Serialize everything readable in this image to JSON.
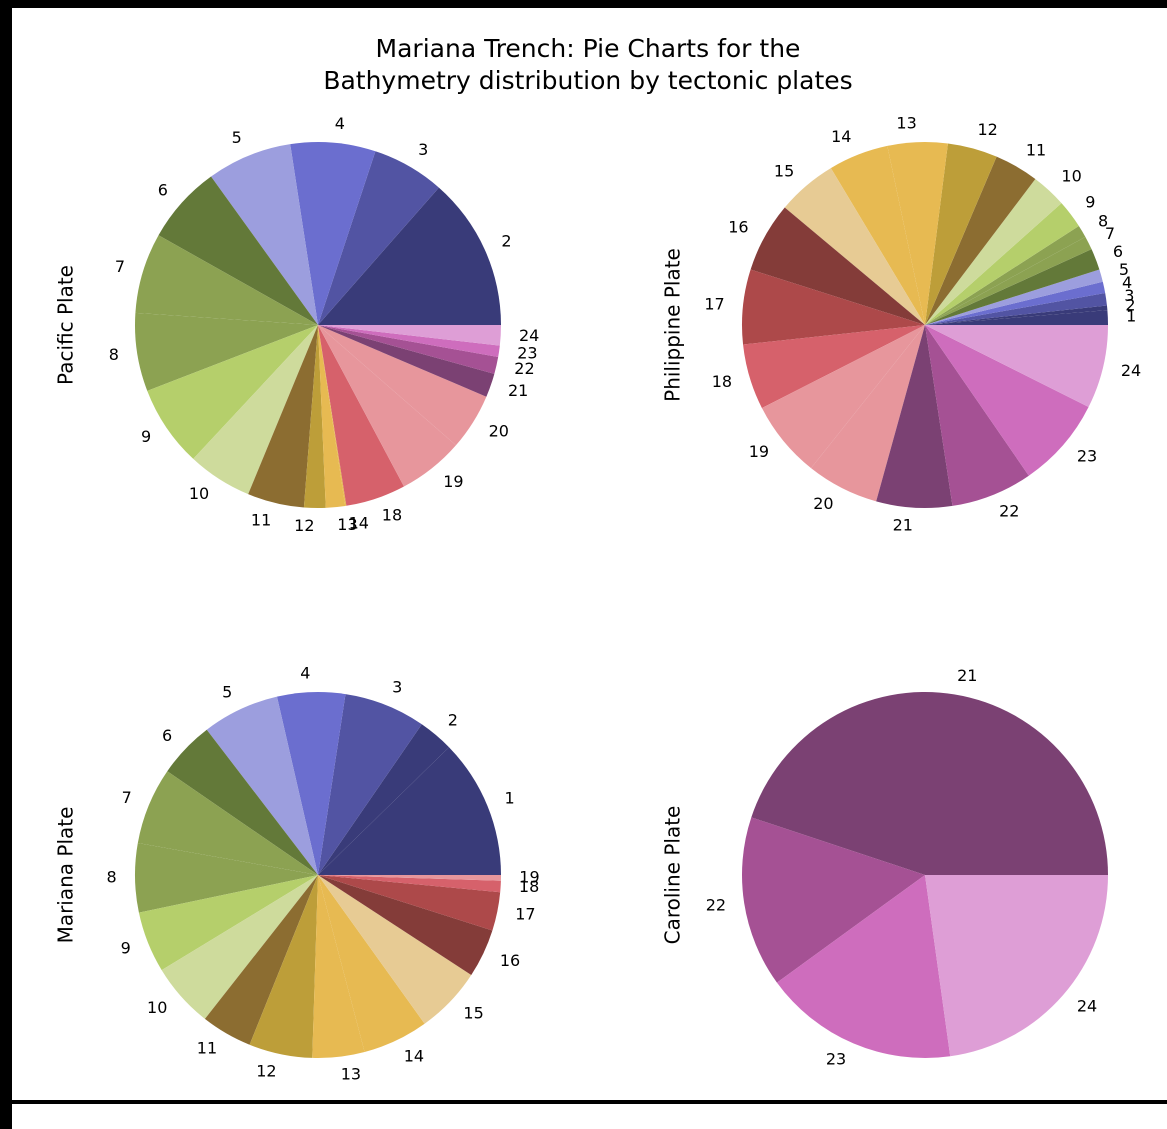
{
  "title": "Mariana Trench: Pie Charts for the\nBathymetry distribution by tectonic plates",
  "chart_data": [
    {
      "type": "pie",
      "ylabel": "Pacific Plate",
      "categories": [
        "2",
        "3",
        "4",
        "5",
        "6",
        "7",
        "8",
        "9",
        "10",
        "11",
        "12",
        "13",
        "14",
        "18",
        "19",
        "20",
        "21",
        "22",
        "23",
        "24"
      ],
      "values": [
        13.5,
        6.4,
        7.5,
        7.5,
        6.9,
        7.1,
        6.9,
        7.2,
        5.7,
        5,
        1.9,
        1.7,
        0.1,
        5.3,
        5.8,
        5,
        2.1,
        1.5,
        1,
        1.8
      ],
      "colors": [
        "#393b79",
        "#5254a3",
        "#6b6ecf",
        "#9c9ede",
        "#637939",
        "#8ca252",
        "#8ca252",
        "#b5cf6b",
        "#cedb9c",
        "#8c6d31",
        "#bd9e39",
        "#e7ba52",
        "#e7ba52",
        "#d6616b",
        "#e7969c",
        "#e7969c",
        "#7b4173",
        "#a55194",
        "#ce6dbd",
        "#de9ed6"
      ]
    },
    {
      "type": "pie",
      "ylabel": "Philippine Plate",
      "categories": [
        "1",
        "2",
        "3",
        "4",
        "5",
        "6",
        "7",
        "8",
        "9",
        "10",
        "11",
        "12",
        "13",
        "14",
        "15",
        "16",
        "17",
        "18",
        "19",
        "20",
        "21",
        "22",
        "23",
        "24"
      ],
      "values": [
        1.3,
        0.4,
        1.1,
        1,
        1.1,
        1.9,
        1.2,
        1.1,
        2.5,
        3.1,
        3.9,
        4.4,
        5.3,
        5.3,
        5.3,
        6.2,
        6.6,
        5.8,
        6.8,
        6.4,
        6.7,
        7.2,
        8,
        7.4
      ],
      "colors": [
        "#393b79",
        "#393b79",
        "#5254a3",
        "#6b6ecf",
        "#9c9ede",
        "#637939",
        "#8ca252",
        "#8ca252",
        "#b5cf6b",
        "#cedb9c",
        "#8c6d31",
        "#bd9e39",
        "#e7ba52",
        "#e7ba52",
        "#e7cb94",
        "#843c39",
        "#ad494a",
        "#d6616b",
        "#e7969c",
        "#e7969c",
        "#7b4173",
        "#a55194",
        "#ce6dbd",
        "#de9ed6"
      ]
    },
    {
      "type": "pie",
      "ylabel": "Mariana Plate",
      "categories": [
        "1",
        "2",
        "3",
        "4",
        "5",
        "6",
        "7",
        "8",
        "9",
        "10",
        "11",
        "12",
        "13",
        "14",
        "15",
        "16",
        "17",
        "18",
        "19"
      ],
      "values": [
        12.3,
        3.1,
        7.2,
        6,
        6.8,
        5,
        6.8,
        6.1,
        5.4,
        5.7,
        4.5,
        5.6,
        4.6,
        5.8,
        5.9,
        4.3,
        3.4,
        1,
        0.5
      ],
      "colors": [
        "#393b79",
        "#393b79",
        "#5254a3",
        "#6b6ecf",
        "#9c9ede",
        "#637939",
        "#8ca252",
        "#8ca252",
        "#b5cf6b",
        "#cedb9c",
        "#8c6d31",
        "#bd9e39",
        "#e7ba52",
        "#e7ba52",
        "#e7cb94",
        "#843c39",
        "#ad494a",
        "#d6616b",
        "#e7969c"
      ]
    },
    {
      "type": "pie",
      "ylabel": "Caroline Plate",
      "categories": [
        "21",
        "22",
        "23",
        "24"
      ],
      "values": [
        44.9,
        15.1,
        17.2,
        22.8
      ],
      "colors": [
        "#7b4173",
        "#a55194",
        "#ce6dbd",
        "#de9ed6"
      ]
    }
  ]
}
